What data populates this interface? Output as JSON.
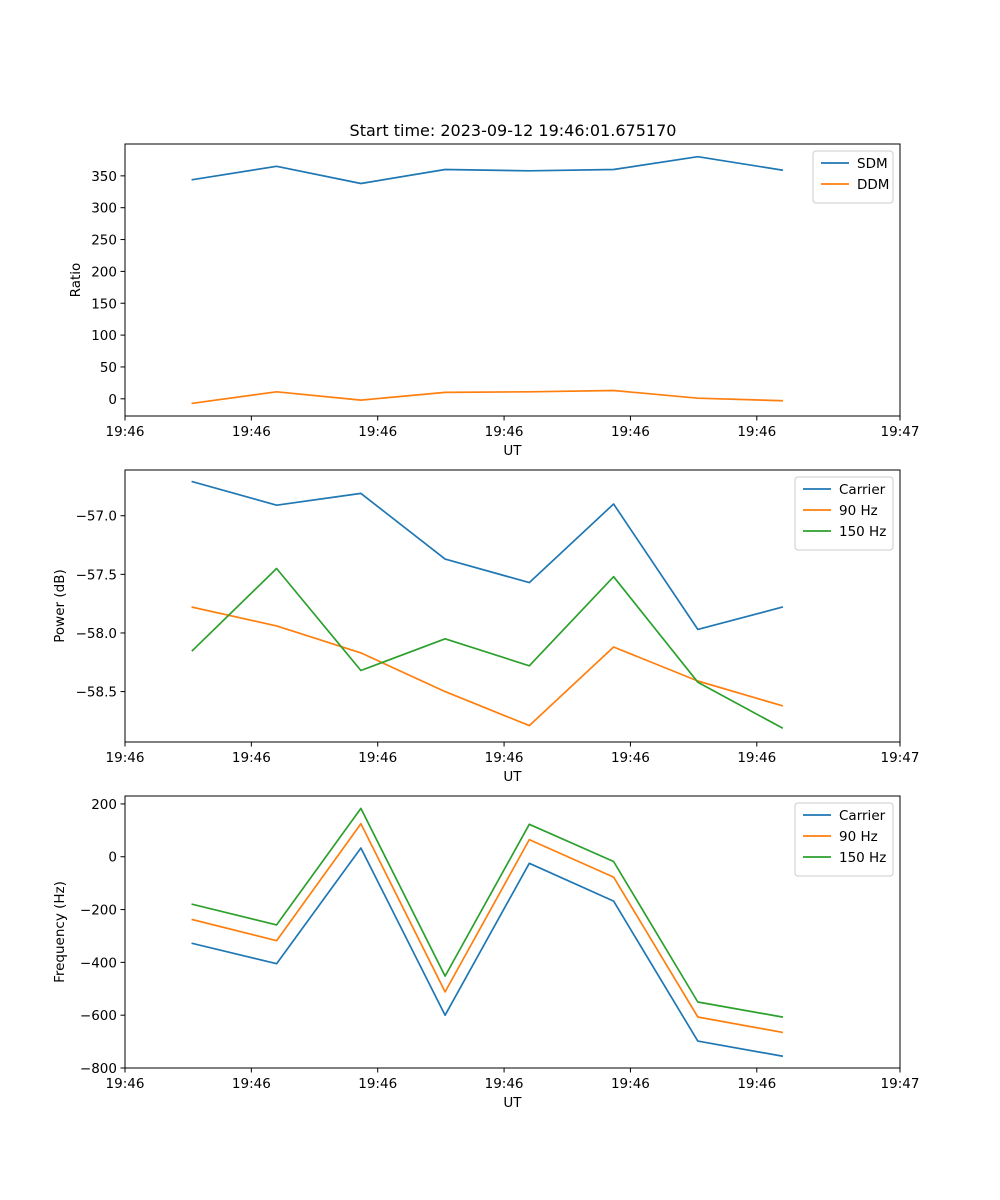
{
  "chart_data": [
    {
      "type": "line",
      "title": "Start time: 2023-09-12 19:46:01.675170",
      "xlabel": "UT",
      "ylabel": "Ratio",
      "x": [
        1,
        2,
        3,
        4,
        5,
        6,
        7,
        8
      ],
      "xlim": [
        0.2,
        9.4
      ],
      "x_ticks": [
        0.2,
        1.7,
        3.2,
        4.7,
        6.2,
        7.7,
        9.4
      ],
      "x_tick_labels": [
        "19:46",
        "19:46",
        "19:46",
        "19:46",
        "19:46",
        "19:46",
        "19:47"
      ],
      "ylim": [
        -27,
        400
      ],
      "y_ticks": [
        0,
        50,
        100,
        150,
        200,
        250,
        300,
        350
      ],
      "y_tick_labels": [
        "0",
        "50",
        "100",
        "150",
        "200",
        "250",
        "300",
        "350"
      ],
      "legend_position": "top-right",
      "series": [
        {
          "name": "SDM",
          "color": "#1f77b4",
          "values": [
            344,
            365,
            338,
            360,
            358,
            360,
            380,
            359
          ]
        },
        {
          "name": "DDM",
          "color": "#ff7f0e",
          "values": [
            -7,
            11,
            -2,
            10,
            11,
            13,
            1,
            -3
          ]
        }
      ]
    },
    {
      "type": "line",
      "title": "",
      "xlabel": "UT",
      "ylabel": "Power (dB)",
      "x": [
        1,
        2,
        3,
        4,
        5,
        6,
        7,
        8
      ],
      "xlim": [
        0.2,
        9.4
      ],
      "x_ticks": [
        0.2,
        1.7,
        3.2,
        4.7,
        6.2,
        7.7,
        9.4
      ],
      "x_tick_labels": [
        "19:46",
        "19:46",
        "19:46",
        "19:46",
        "19:46",
        "19:46",
        "19:47"
      ],
      "ylim": [
        -58.93,
        -56.61
      ],
      "y_ticks": [
        -58.5,
        -58.0,
        -57.5,
        -57.0
      ],
      "y_tick_labels": [
        "−58.5",
        "−58.0",
        "−57.5",
        "−57.0"
      ],
      "legend_position": "top-right",
      "series": [
        {
          "name": "Carrier",
          "color": "#1f77b4",
          "values": [
            -56.71,
            -56.91,
            -56.81,
            -57.37,
            -57.57,
            -56.9,
            -57.97,
            -57.78
          ]
        },
        {
          "name": "90 Hz",
          "color": "#ff7f0e",
          "values": [
            -57.78,
            -57.94,
            -58.17,
            -58.5,
            -58.79,
            -58.12,
            -58.41,
            -58.62
          ]
        },
        {
          "name": "150 Hz",
          "color": "#2ca02c",
          "values": [
            -58.15,
            -57.45,
            -58.32,
            -58.05,
            -58.28,
            -57.52,
            -58.42,
            -58.81
          ]
        }
      ]
    },
    {
      "type": "line",
      "title": "",
      "xlabel": "UT",
      "ylabel": "Frequency (Hz)",
      "x": [
        1,
        2,
        3,
        4,
        5,
        6,
        7,
        8
      ],
      "xlim": [
        0.2,
        9.4
      ],
      "x_ticks": [
        0.2,
        1.7,
        3.2,
        4.7,
        6.2,
        7.7,
        9.4
      ],
      "x_tick_labels": [
        "19:46",
        "19:46",
        "19:46",
        "19:46",
        "19:46",
        "19:46",
        "19:47"
      ],
      "ylim": [
        -800,
        230
      ],
      "y_ticks": [
        -800,
        -600,
        -400,
        -200,
        0,
        200
      ],
      "y_tick_labels": [
        "−800",
        "−600",
        "−400",
        "−200",
        "0",
        "200"
      ],
      "legend_position": "top-right",
      "series": [
        {
          "name": "Carrier",
          "color": "#1f77b4",
          "values": [
            -328,
            -405,
            33,
            -600,
            -25,
            -168,
            -698,
            -755
          ]
        },
        {
          "name": "90 Hz",
          "color": "#ff7f0e",
          "values": [
            -238,
            -318,
            125,
            -512,
            65,
            -77,
            -607,
            -665
          ]
        },
        {
          "name": "150 Hz",
          "color": "#2ca02c",
          "values": [
            -180,
            -258,
            183,
            -452,
            123,
            -18,
            -550,
            -607
          ]
        }
      ]
    }
  ]
}
